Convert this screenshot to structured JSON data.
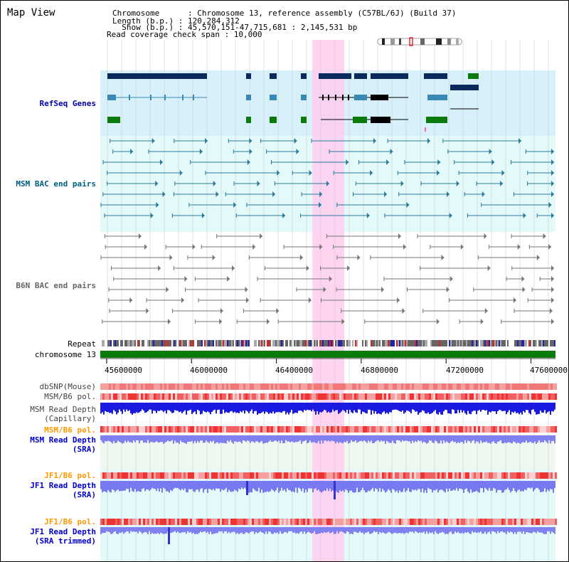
{
  "page": {
    "title": "Map View",
    "header": {
      "chromosome_line": "Chromosome      : Chromosome 13, reference assembly (C57BL/6J) (Build 37)",
      "length_line": "Length (b.p.) : 120,284,312",
      "show_line": "  Show (b.p.) : 45,570,151-47,715,681 : 2,145,531 bp",
      "coverage_line": "Read coverage check span : 10,000"
    }
  },
  "tracks": {
    "refseq": {
      "label": "RefSeq Genes",
      "color": "#0000aa"
    },
    "msm_bac": {
      "label": "MSM BAC end pairs",
      "color": "#006080"
    },
    "b6n_bac": {
      "label": "B6N BAC end pairs",
      "color": "#666666"
    },
    "repeat": {
      "label": "Repeat"
    },
    "chromosome": {
      "label": "chromosome 13"
    },
    "dbsnp": {
      "label": "dbSNP(Mouse)",
      "color": "#444444"
    },
    "msm_b6_pol": {
      "label": "MSM/B6 pol.",
      "color": "#444444"
    },
    "msm_read_depth_cap": {
      "label": "MSM Read Depth\n(Capillary)",
      "color": "#444444"
    },
    "msm_b6_pol_sra": {
      "label": "MSM/B6 pol.",
      "color": "#ff9900"
    },
    "msm_read_depth_sra": {
      "label": "MSM Read Depth\n(SRA)",
      "color": "#0000cc"
    },
    "jf1_b6_pol": {
      "label": "JF1/B6 pol.",
      "color": "#ff9900"
    },
    "jf1_read_depth_sra": {
      "label": "JF1 Read Depth\n(SRA)",
      "color": "#0000cc"
    },
    "jf1_b6_pol_2": {
      "label": "JF1/B6 pol.",
      "color": "#ff9900"
    },
    "jf1_read_depth_trimmed": {
      "label": "JF1 Read Depth\n(SRA trimmed)",
      "color": "#0000cc"
    }
  },
  "axis": {
    "ticks": [
      "45600000",
      "46000000",
      "46400000",
      "46800000",
      "47200000",
      "47600000"
    ],
    "tick_values": [
      45600000,
      46000000,
      46400000,
      46800000,
      47200000,
      47600000
    ],
    "range_start": 45570151,
    "range_end": 47715681
  },
  "highlight": {
    "start": 46570000,
    "end": 46720000,
    "color": "#ffccee"
  },
  "colors": {
    "gene_dark": "#0a2a5e",
    "gene_mid": "#3a88b4",
    "gene_green": "#0a7a0a",
    "refseq_bg": "#d8f0fa",
    "msm_bg": "#e4fafa",
    "chromosome_green": "#0a7a0a",
    "depth_blue": "#3a3ae8",
    "depth_light": "#8080f0",
    "pol_red": "#ee3333",
    "pol_pink": "#f4a0a0"
  }
}
